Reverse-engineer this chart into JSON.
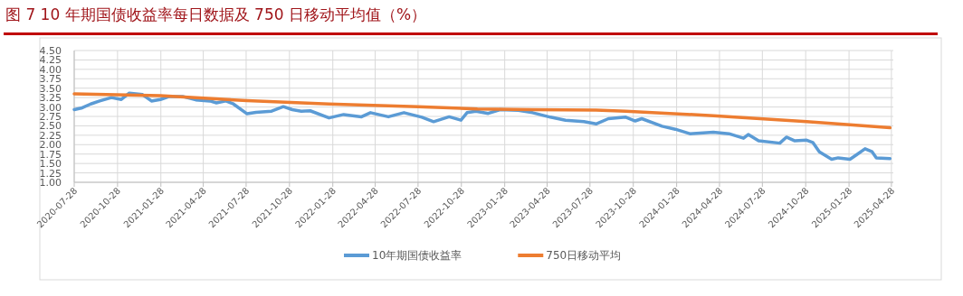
{
  "chart_data": {
    "type": "line",
    "title": "图 7   10 年期国债收益率每日数据及 750 日移动平均值（%）",
    "ylim": [
      1.0,
      4.5
    ],
    "yticks": [
      {
        "value": 1.0,
        "label": "1.00"
      },
      {
        "value": 1.25,
        "label": "1.25"
      },
      {
        "value": 1.5,
        "label": "1.50"
      },
      {
        "value": 1.75,
        "label": "1.75"
      },
      {
        "value": 2.0,
        "label": "2.00"
      },
      {
        "value": 2.25,
        "label": "2.25"
      },
      {
        "value": 2.5,
        "label": "2.50"
      },
      {
        "value": 2.75,
        "label": "2.75"
      },
      {
        "value": 3.0,
        "label": "3.00"
      },
      {
        "value": 3.25,
        "label": "3.25"
      },
      {
        "value": 3.5,
        "label": "3.50"
      },
      {
        "value": 3.75,
        "label": "3.75"
      },
      {
        "value": 4.0,
        "label": "4.00"
      },
      {
        "value": 4.25,
        "label": "4.25"
      },
      {
        "value": 4.5,
        "label": "4.50"
      }
    ],
    "xlim": [
      "2020-07-28",
      "2025-05-02"
    ],
    "xticks": [
      {
        "value": "2020-07-28",
        "label": "2020-07-28"
      },
      {
        "value": "2020-10-28",
        "label": "2020-10-28"
      },
      {
        "value": "2021-01-28",
        "label": "2021-01-28"
      },
      {
        "value": "2021-04-28",
        "label": "2021-04-28"
      },
      {
        "value": "2021-07-28",
        "label": "2021-07-28"
      },
      {
        "value": "2021-10-28",
        "label": "2021-10-28"
      },
      {
        "value": "2022-01-28",
        "label": "2022-01-28"
      },
      {
        "value": "2022-04-28",
        "label": "2022-04-28"
      },
      {
        "value": "2022-07-28",
        "label": "2022-07-28"
      },
      {
        "value": "2022-10-28",
        "label": "2022-10-28"
      },
      {
        "value": "2023-01-28",
        "label": "2023-01-28"
      },
      {
        "value": "2023-04-28",
        "label": "2023-04-28"
      },
      {
        "value": "2023-07-28",
        "label": "2023-07-28"
      },
      {
        "value": "2023-10-28",
        "label": "2023-10-28"
      },
      {
        "value": "2024-01-28",
        "label": "2024-01-28"
      },
      {
        "value": "2024-04-28",
        "label": "2024-04-28"
      },
      {
        "value": "2024-07-28",
        "label": "2024-07-28"
      },
      {
        "value": "2024-10-28",
        "label": "2024-10-28"
      },
      {
        "value": "2025-01-28",
        "label": "2025-01-28"
      },
      {
        "value": "2025-04-28",
        "label": "2025-04-28"
      }
    ],
    "grid": true,
    "legend": "bottom",
    "marker": "none",
    "line_style": "solid",
    "series": [
      {
        "name": "10年期国债收益率",
        "color": "#5b9bd5",
        "x": [
          "2020-07-28",
          "2020-08-12",
          "2020-09-01",
          "2020-09-20",
          "2020-10-15",
          "2020-11-05",
          "2020-11-22",
          "2020-12-20",
          "2021-01-08",
          "2021-01-27",
          "2021-02-15",
          "2021-03-15",
          "2021-04-12",
          "2021-05-12",
          "2021-05-26",
          "2021-06-15",
          "2021-07-01",
          "2021-07-30",
          "2021-08-18",
          "2021-09-20",
          "2021-10-15",
          "2021-11-03",
          "2021-11-22",
          "2021-12-11",
          "2022-01-20",
          "2022-02-20",
          "2022-03-30",
          "2022-04-18",
          "2022-05-26",
          "2022-06-28",
          "2022-08-05",
          "2022-08-30",
          "2022-10-02",
          "2022-10-27",
          "2022-11-09",
          "2022-11-28",
          "2022-12-24",
          "2023-01-18",
          "2023-02-26",
          "2023-03-28",
          "2023-05-05",
          "2023-06-06",
          "2023-07-15",
          "2023-08-10",
          "2023-09-05",
          "2023-10-12",
          "2023-11-01",
          "2023-11-15",
          "2023-12-28",
          "2024-01-25",
          "2024-02-25",
          "2024-04-15",
          "2024-05-18",
          "2024-06-18",
          "2024-06-28",
          "2024-07-20",
          "2024-09-03",
          "2024-09-17",
          "2024-10-05",
          "2024-10-30",
          "2024-11-12",
          "2024-11-26",
          "2024-12-22",
          "2025-01-05",
          "2025-01-30",
          "2025-02-13",
          "2025-03-03",
          "2025-03-18",
          "2025-03-27",
          "2025-04-25"
        ],
        "values": [
          2.93,
          2.97,
          3.08,
          3.16,
          3.25,
          3.2,
          3.37,
          3.33,
          3.16,
          3.2,
          3.28,
          3.28,
          3.19,
          3.16,
          3.11,
          3.16,
          3.08,
          2.82,
          2.86,
          2.89,
          3.01,
          2.93,
          2.89,
          2.9,
          2.71,
          2.8,
          2.74,
          2.85,
          2.74,
          2.85,
          2.73,
          2.61,
          2.74,
          2.65,
          2.85,
          2.89,
          2.83,
          2.93,
          2.91,
          2.85,
          2.73,
          2.65,
          2.61,
          2.55,
          2.69,
          2.73,
          2.63,
          2.69,
          2.49,
          2.41,
          2.29,
          2.33,
          2.29,
          2.17,
          2.27,
          2.1,
          2.04,
          2.2,
          2.1,
          2.12,
          2.06,
          1.81,
          1.61,
          1.65,
          1.61,
          1.73,
          1.89,
          1.81,
          1.65,
          1.63
        ]
      },
      {
        "name": "750日移动平均",
        "color": "#ed7d31",
        "x": [
          "2020-07-28",
          "2021-01-27",
          "2021-07-30",
          "2022-01-20",
          "2022-07-28",
          "2022-12-01",
          "2023-03-28",
          "2023-08-10",
          "2023-10-12",
          "2024-04-15",
          "2024-10-30",
          "2025-04-25"
        ],
        "values": [
          3.35,
          3.3,
          3.17,
          3.08,
          3.01,
          2.95,
          2.93,
          2.92,
          2.89,
          2.77,
          2.61,
          2.45
        ]
      }
    ]
  }
}
